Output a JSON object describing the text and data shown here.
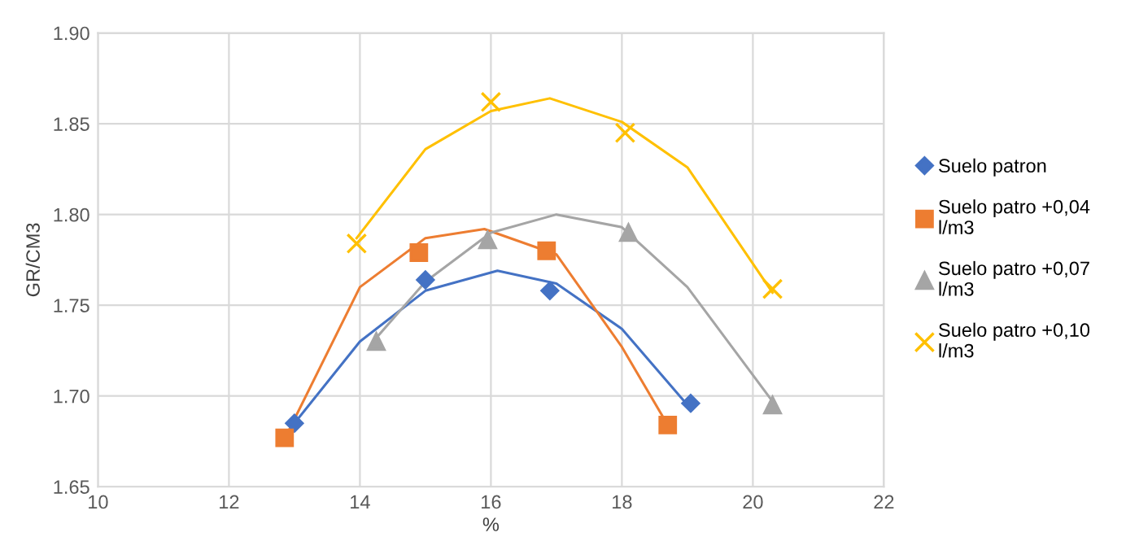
{
  "chart_data": {
    "type": "scatter",
    "xlabel": "%",
    "ylabel": "GR/CM3",
    "xlim": [
      10,
      22
    ],
    "xticks": [
      10,
      12,
      14,
      16,
      18,
      20,
      22
    ],
    "ylim": [
      1.65,
      1.9
    ],
    "yticks": [
      {
        "value": 1.65,
        "label": "1.65"
      },
      {
        "value": 1.7,
        "label": "1.70"
      },
      {
        "value": 1.75,
        "label": "1.75"
      },
      {
        "value": 1.8,
        "label": "1.80"
      },
      {
        "value": 1.85,
        "label": "1.85"
      },
      {
        "value": 1.9,
        "label": "1.90"
      }
    ],
    "grid": true,
    "legend": "right",
    "series": [
      {
        "name": "Suelo patron",
        "color": "#4472c4",
        "marker": "diamond",
        "x": [
          13,
          15,
          16.9,
          19.05
        ],
        "values": [
          1.685,
          1.764,
          1.758,
          1.696
        ]
      },
      {
        "name": "Suelo patro +0,04 l/m3",
        "color": "#ed7d31",
        "marker": "square",
        "x": [
          12.85,
          14.9,
          16.85,
          18.7
        ],
        "values": [
          1.677,
          1.779,
          1.78,
          1.684
        ]
      },
      {
        "name": "Suelo patro +0,07 l/m3",
        "color": "#a5a5a5",
        "marker": "triangle",
        "x": [
          14.25,
          15.95,
          18.1,
          20.3
        ],
        "values": [
          1.73,
          1.786,
          1.79,
          1.695
        ]
      },
      {
        "name": "Suelo patro +0,10 l/m3",
        "color": "#ffc000",
        "marker": "cross",
        "x": [
          13.95,
          16.0,
          18.05,
          20.3
        ],
        "values": [
          1.784,
          1.862,
          1.845,
          1.759
        ]
      },
      {
        "type": "line",
        "color": "#4472c4",
        "x": [
          13,
          14,
          15,
          16.1,
          17,
          18,
          19.05
        ],
        "values": [
          1.685,
          1.73,
          1.758,
          1.769,
          1.762,
          1.737,
          1.693
        ]
      },
      {
        "type": "line",
        "color": "#ed7d31",
        "x": [
          12.9,
          14,
          15,
          15.9,
          17,
          18,
          18.7
        ],
        "values": [
          1.68,
          1.76,
          1.787,
          1.792,
          1.778,
          1.727,
          1.684
        ]
      },
      {
        "type": "line",
        "color": "#a5a5a5",
        "x": [
          14.25,
          15,
          16,
          17,
          18,
          19,
          20.3
        ],
        "values": [
          1.732,
          1.763,
          1.79,
          1.8,
          1.793,
          1.76,
          1.697
        ]
      },
      {
        "type": "line",
        "color": "#ffc000",
        "x": [
          13.95,
          15,
          16,
          16.9,
          18,
          19,
          20.3
        ],
        "values": [
          1.787,
          1.836,
          1.857,
          1.864,
          1.851,
          1.826,
          1.757
        ]
      }
    ]
  }
}
